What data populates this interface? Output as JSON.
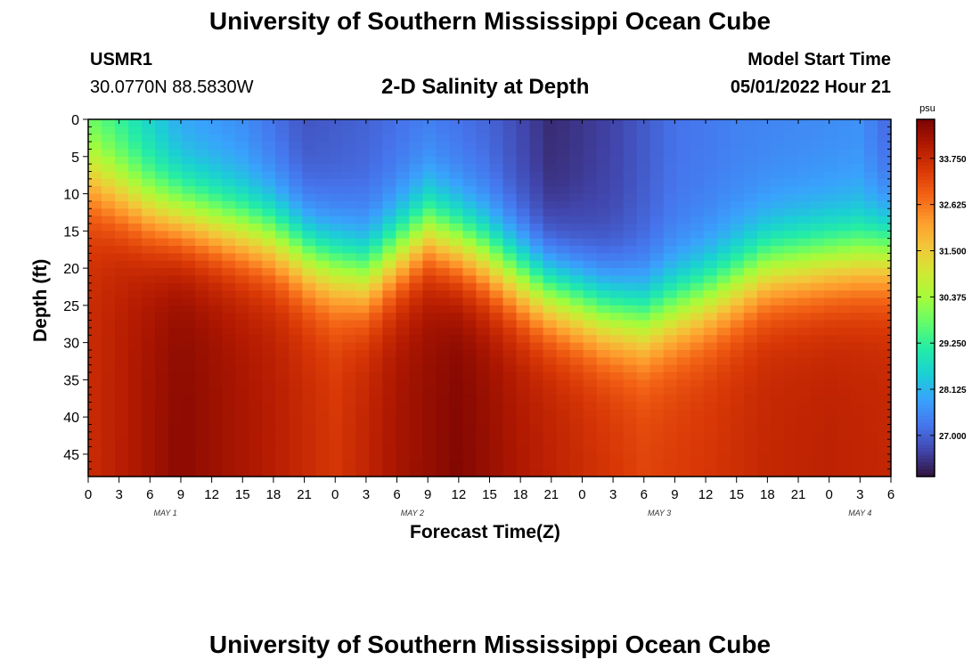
{
  "page_title": "University of Southern Mississippi Ocean Cube",
  "footer_title": "University of Southern Mississippi Ocean Cube",
  "station": {
    "id": "USMR1",
    "coords": "30.0770N  88.5830W"
  },
  "model_start": {
    "label": "Model Start Time",
    "value": "05/01/2022 Hour 21"
  },
  "chart_data": {
    "type": "heatmap",
    "title": "2-D Salinity at Depth",
    "xlabel": "Forecast Time(Z)",
    "ylabel": "Depth (ft)",
    "colorbar_unit": "psu",
    "x_tick_labels": [
      "0",
      "3",
      "6",
      "9",
      "12",
      "15",
      "18",
      "21",
      "0",
      "3",
      "6",
      "9",
      "12",
      "15",
      "18",
      "21",
      "0",
      "3",
      "6",
      "9",
      "12",
      "15",
      "18",
      "21",
      "0",
      "3",
      "6"
    ],
    "x_range_hours": [
      0,
      78
    ],
    "date_labels": [
      {
        "label": "MAY 1",
        "hour": 7.5
      },
      {
        "label": "MAY 2",
        "hour": 31.5
      },
      {
        "label": "MAY 3",
        "hour": 55.5
      },
      {
        "label": "MAY 4",
        "hour": 75
      }
    ],
    "y_ticks": [
      0,
      5,
      10,
      15,
      20,
      25,
      30,
      35,
      40,
      45
    ],
    "ylim": [
      0,
      48
    ],
    "y_inverted": true,
    "colorbar_ticks": [
      "33.750",
      "32.625",
      "31.500",
      "30.375",
      "29.250",
      "28.125",
      "27.000"
    ],
    "colorbar_values": [
      33.75,
      32.625,
      31.5,
      30.375,
      29.25,
      28.125,
      27.0
    ],
    "color_range": [
      26.0,
      34.7
    ],
    "colormap": [
      "#30123b",
      "#4145ab",
      "#4675ed",
      "#39a2fc",
      "#1bcfd4",
      "#24eca6",
      "#61fc6c",
      "#a4fc3b",
      "#d1e834",
      "#f3c63a",
      "#fe9b2d",
      "#f36315",
      "#d93806",
      "#b11901",
      "#7a0402"
    ],
    "halocline_depth_ft": [
      [
        0,
        8
      ],
      [
        6,
        12
      ],
      [
        12,
        14
      ],
      [
        18,
        16
      ],
      [
        22,
        19
      ],
      [
        27,
        21
      ],
      [
        33,
        15
      ],
      [
        38,
        18
      ],
      [
        44,
        23
      ],
      [
        50,
        26
      ],
      [
        54,
        27
      ],
      [
        60,
        24
      ],
      [
        66,
        20
      ],
      [
        72,
        19
      ],
      [
        78,
        18
      ]
    ],
    "surface_salinity_psu": [
      [
        0,
        29.5
      ],
      [
        3,
        29.0
      ],
      [
        9,
        27.8
      ],
      [
        15,
        27.5
      ],
      [
        21,
        26.8
      ],
      [
        27,
        27.0
      ],
      [
        33,
        27.3
      ],
      [
        39,
        27.0
      ],
      [
        45,
        26.3
      ],
      [
        51,
        26.6
      ],
      [
        57,
        27.2
      ],
      [
        63,
        27.4
      ],
      [
        69,
        27.5
      ],
      [
        75,
        27.6
      ],
      [
        78,
        27.0
      ]
    ],
    "bottom_salinity_psu": [
      [
        0,
        33.7
      ],
      [
        9,
        34.5
      ],
      [
        18,
        34.0
      ],
      [
        24,
        33.5
      ],
      [
        30,
        34.2
      ],
      [
        36,
        34.6
      ],
      [
        42,
        34.1
      ],
      [
        48,
        33.7
      ],
      [
        54,
        33.3
      ],
      [
        60,
        33.5
      ],
      [
        66,
        33.8
      ],
      [
        72,
        33.9
      ],
      [
        78,
        33.8
      ]
    ]
  }
}
